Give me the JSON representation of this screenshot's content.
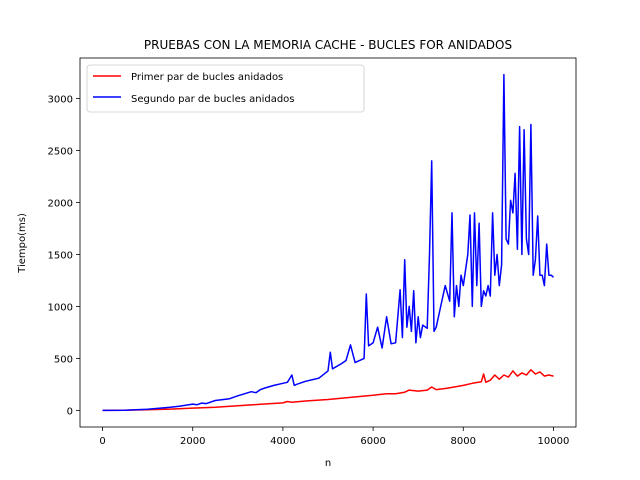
{
  "chart_data": {
    "type": "line",
    "title": "PRUEBAS CON LA MEMORIA CACHE - BUCLES FOR ANIDADOS",
    "xlabel": "n",
    "ylabel": "Tiempo(ms)",
    "xlim": [
      -500,
      10500
    ],
    "ylim": [
      -160,
      3390
    ],
    "xticks": [
      0,
      2000,
      4000,
      6000,
      8000,
      10000
    ],
    "yticks": [
      0,
      500,
      1000,
      1500,
      2000,
      2500,
      3000
    ],
    "grid": false,
    "legend_position": "top-left",
    "series": [
      {
        "name": "Primer par de bucles anidados",
        "color": "#ff0000",
        "x": [
          0,
          500,
          1000,
          1500,
          2000,
          2500,
          3000,
          3500,
          4000,
          4100,
          4200,
          4500,
          5000,
          5500,
          6000,
          6300,
          6500,
          6700,
          6800,
          7000,
          7200,
          7300,
          7400,
          7600,
          7800,
          8000,
          8200,
          8400,
          8450,
          8500,
          8600,
          8700,
          8800,
          8900,
          9000,
          9100,
          9200,
          9300,
          9400,
          9500,
          9600,
          9700,
          9800,
          9900,
          10000
        ],
        "y": [
          0,
          2,
          5,
          12,
          22,
          30,
          45,
          58,
          72,
          85,
          78,
          90,
          105,
          125,
          145,
          160,
          160,
          175,
          195,
          185,
          195,
          225,
          200,
          210,
          225,
          240,
          260,
          275,
          350,
          270,
          290,
          340,
          300,
          340,
          320,
          380,
          330,
          360,
          340,
          390,
          350,
          370,
          330,
          340,
          330
        ]
      },
      {
        "name": "Segundo par de bucles anidados",
        "color": "#0000ff",
        "x": [
          0,
          500,
          1000,
          1500,
          1700,
          2000,
          2100,
          2200,
          2300,
          2500,
          2800,
          3000,
          3300,
          3400,
          3500,
          3600,
          3800,
          4000,
          4100,
          4200,
          4250,
          4300,
          4500,
          4800,
          5000,
          5050,
          5100,
          5300,
          5400,
          5500,
          5600,
          5800,
          5850,
          5900,
          6000,
          6100,
          6200,
          6300,
          6400,
          6500,
          6600,
          6650,
          6700,
          6750,
          6800,
          6850,
          6900,
          6950,
          7000,
          7050,
          7100,
          7200,
          7250,
          7300,
          7350,
          7400,
          7500,
          7600,
          7700,
          7750,
          7800,
          7850,
          7900,
          7950,
          8000,
          8100,
          8150,
          8200,
          8250,
          8300,
          8350,
          8400,
          8450,
          8500,
          8550,
          8600,
          8650,
          8700,
          8750,
          8800,
          8850,
          8900,
          8950,
          9000,
          9050,
          9100,
          9150,
          9200,
          9250,
          9300,
          9350,
          9400,
          9450,
          9500,
          9550,
          9600,
          9650,
          9700,
          9750,
          9800,
          9850,
          9900,
          9950,
          10000
        ],
        "y": [
          0,
          2,
          10,
          30,
          40,
          60,
          55,
          70,
          65,
          95,
          110,
          140,
          180,
          170,
          200,
          215,
          240,
          260,
          270,
          340,
          240,
          250,
          280,
          310,
          380,
          560,
          400,
          450,
          480,
          630,
          460,
          500,
          1120,
          620,
          650,
          800,
          600,
          900,
          640,
          650,
          1160,
          700,
          1450,
          800,
          1000,
          760,
          1150,
          650,
          900,
          700,
          820,
          790,
          1500,
          2400,
          760,
          800,
          1000,
          1200,
          1050,
          1900,
          900,
          1200,
          1000,
          1300,
          1200,
          1500,
          1880,
          1000,
          1900,
          1200,
          1800,
          1000,
          1150,
          1100,
          1200,
          1100,
          1900,
          1300,
          1500,
          1200,
          1400,
          3230,
          1650,
          1600,
          2020,
          1900,
          2280,
          1550,
          2730,
          1500,
          2700,
          1650,
          1500,
          2750,
          1300,
          1450,
          1870,
          1300,
          1300,
          1200,
          1600,
          1300,
          1300,
          1280
        ]
      }
    ]
  }
}
